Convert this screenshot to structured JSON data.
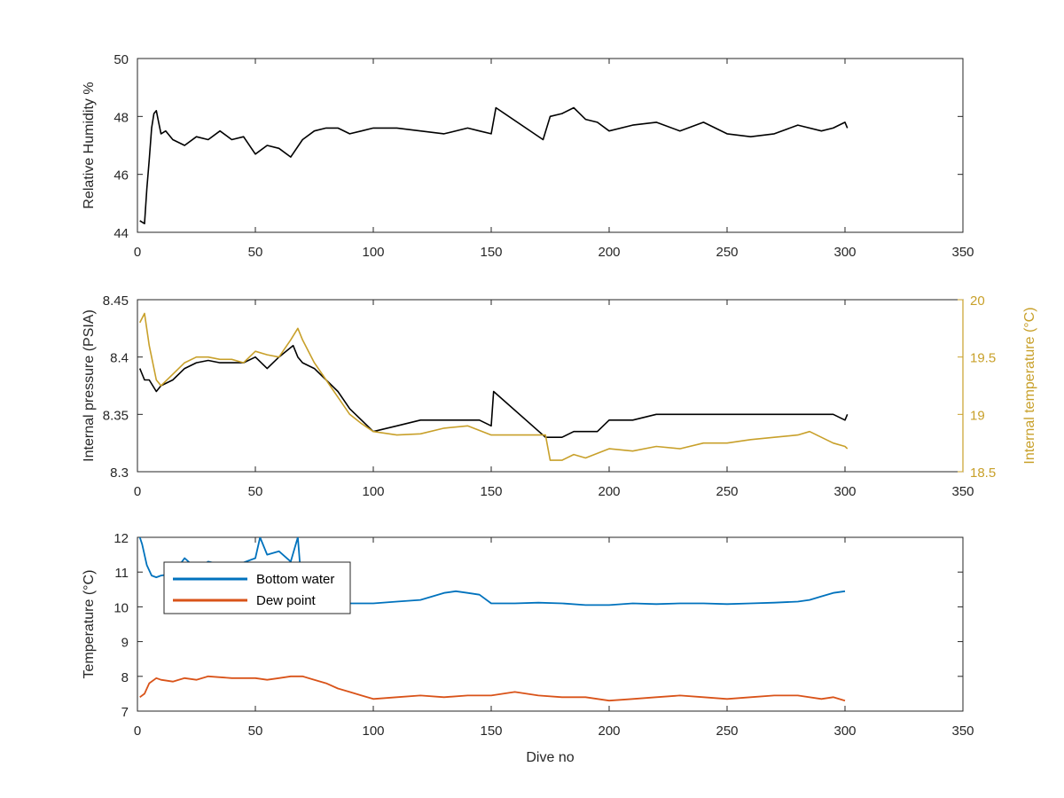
{
  "colors": {
    "black": "#000000",
    "axis": "#262626",
    "bottom_water": "#0072BD",
    "dew_point": "#D95319",
    "internal_temperature": "#C8A02A"
  },
  "chart_data": [
    {
      "id": "humidity",
      "type": "line",
      "xlabel": "",
      "ylabel": "Relative Humidity %",
      "xlim": [
        0,
        350
      ],
      "ylim": [
        44,
        50
      ],
      "xticks": [
        0,
        50,
        100,
        150,
        200,
        250,
        300,
        350
      ],
      "yticks": [
        44,
        46,
        48,
        50
      ],
      "series": [
        {
          "color": "black",
          "x": [
            1,
            3,
            4,
            5,
            6,
            7,
            8,
            9,
            10,
            12,
            15,
            20,
            25,
            30,
            35,
            40,
            45,
            50,
            55,
            60,
            65,
            70,
            75,
            80,
            85,
            90,
            95,
            100,
            110,
            120,
            130,
            140,
            145,
            150,
            152,
            172,
            175,
            180,
            185,
            190,
            195,
            200,
            210,
            220,
            230,
            240,
            250,
            260,
            270,
            280,
            290,
            295,
            300,
            301
          ],
          "y": [
            44.4,
            44.3,
            45.5,
            46.5,
            47.6,
            48.1,
            48.2,
            47.8,
            47.4,
            47.5,
            47.2,
            47.0,
            47.3,
            47.2,
            47.5,
            47.2,
            47.3,
            46.7,
            47.0,
            46.9,
            46.6,
            47.2,
            47.5,
            47.6,
            47.6,
            47.4,
            47.5,
            47.6,
            47.6,
            47.5,
            47.4,
            47.6,
            47.5,
            47.4,
            48.3,
            47.2,
            48.0,
            48.1,
            48.3,
            47.9,
            47.8,
            47.5,
            47.7,
            47.8,
            47.5,
            47.8,
            47.4,
            47.3,
            47.4,
            47.7,
            47.5,
            47.6,
            47.8,
            47.6
          ]
        }
      ]
    },
    {
      "id": "pressure",
      "type": "line",
      "xlabel": "",
      "ylabel": "Internal pressure (PSIA)",
      "ylabel_right": "Internal temperature (°C)",
      "xlim": [
        0,
        350
      ],
      "ylim": [
        8.3,
        8.45
      ],
      "ylim_right": [
        18.5,
        20
      ],
      "xticks": [
        0,
        50,
        100,
        150,
        200,
        250,
        300,
        350
      ],
      "yticks": [
        8.3,
        8.35,
        8.4,
        8.45
      ],
      "yticks_right": [
        18.5,
        19,
        19.5,
        20
      ],
      "series": [
        {
          "name": "",
          "axis": "left",
          "color": "black",
          "x": [
            1,
            3,
            5,
            8,
            10,
            15,
            20,
            25,
            30,
            35,
            40,
            45,
            50,
            55,
            60,
            63,
            66,
            68,
            70,
            75,
            80,
            85,
            90,
            95,
            100,
            110,
            120,
            130,
            140,
            145,
            150,
            151,
            173,
            175,
            180,
            185,
            190,
            195,
            200,
            210,
            220,
            230,
            240,
            250,
            260,
            270,
            280,
            290,
            295,
            300,
            301
          ],
          "y": [
            8.39,
            8.38,
            8.38,
            8.37,
            8.375,
            8.38,
            8.39,
            8.395,
            8.397,
            8.395,
            8.395,
            8.395,
            8.4,
            8.39,
            8.4,
            8.405,
            8.41,
            8.4,
            8.395,
            8.39,
            8.38,
            8.37,
            8.355,
            8.345,
            8.335,
            8.34,
            8.345,
            8.345,
            8.345,
            8.345,
            8.34,
            8.37,
            8.33,
            8.33,
            8.33,
            8.335,
            8.335,
            8.335,
            8.345,
            8.345,
            8.35,
            8.35,
            8.35,
            8.35,
            8.35,
            8.35,
            8.35,
            8.35,
            8.35,
            8.345,
            8.35
          ]
        },
        {
          "name": "",
          "axis": "right",
          "color": "internal_temperature",
          "x": [
            1,
            3,
            5,
            8,
            10,
            15,
            20,
            25,
            30,
            35,
            40,
            45,
            50,
            55,
            60,
            65,
            68,
            70,
            75,
            80,
            85,
            90,
            95,
            100,
            110,
            120,
            130,
            140,
            150,
            173,
            175,
            180,
            185,
            190,
            200,
            210,
            220,
            230,
            240,
            250,
            260,
            270,
            280,
            285,
            290,
            295,
            300,
            301
          ],
          "y": [
            19.8,
            19.88,
            19.6,
            19.3,
            19.25,
            19.35,
            19.45,
            19.5,
            19.5,
            19.48,
            19.48,
            19.45,
            19.55,
            19.52,
            19.5,
            19.65,
            19.75,
            19.65,
            19.45,
            19.3,
            19.15,
            19.0,
            18.92,
            18.85,
            18.82,
            18.83,
            18.88,
            18.9,
            18.82,
            18.82,
            18.6,
            18.6,
            18.65,
            18.62,
            18.7,
            18.68,
            18.72,
            18.7,
            18.75,
            18.75,
            18.78,
            18.8,
            18.82,
            18.85,
            18.8,
            18.75,
            18.72,
            18.7
          ]
        }
      ]
    },
    {
      "id": "temperature",
      "type": "line",
      "xlabel": "Dive no",
      "ylabel": "Temperature (°C)",
      "xlim": [
        0,
        350
      ],
      "ylim": [
        7,
        12
      ],
      "xticks": [
        0,
        50,
        100,
        150,
        200,
        250,
        300,
        350
      ],
      "yticks": [
        7,
        8,
        9,
        10,
        11,
        12
      ],
      "legend": {
        "position": "top-left"
      },
      "series": [
        {
          "name": "Bottom water",
          "color": "bottom_water",
          "x": [
            1,
            2,
            4,
            6,
            8,
            10,
            15,
            20,
            25,
            30,
            40,
            50,
            52,
            55,
            60,
            65,
            68,
            70,
            75,
            80,
            90,
            100,
            110,
            120,
            130,
            135,
            140,
            145,
            150,
            160,
            170,
            180,
            190,
            200,
            210,
            220,
            230,
            240,
            250,
            260,
            270,
            280,
            285,
            290,
            295,
            300
          ],
          "y": [
            12.0,
            11.8,
            11.2,
            10.9,
            10.85,
            10.9,
            10.95,
            11.4,
            11.1,
            11.3,
            11.15,
            11.4,
            12.0,
            11.5,
            11.6,
            11.3,
            12.0,
            10.3,
            10.2,
            10.2,
            10.1,
            10.1,
            10.15,
            10.2,
            10.4,
            10.45,
            10.4,
            10.35,
            10.1,
            10.1,
            10.12,
            10.1,
            10.05,
            10.05,
            10.1,
            10.08,
            10.1,
            10.1,
            10.08,
            10.1,
            10.12,
            10.15,
            10.2,
            10.3,
            10.4,
            10.45
          ]
        },
        {
          "name": "Dew point",
          "color": "dew_point",
          "x": [
            1,
            3,
            5,
            8,
            10,
            15,
            20,
            25,
            30,
            40,
            50,
            55,
            60,
            65,
            70,
            75,
            80,
            85,
            90,
            95,
            100,
            110,
            120,
            130,
            140,
            150,
            160,
            170,
            180,
            190,
            200,
            210,
            220,
            230,
            240,
            250,
            260,
            270,
            280,
            290,
            295,
            300
          ],
          "y": [
            7.4,
            7.5,
            7.8,
            7.95,
            7.9,
            7.85,
            7.95,
            7.9,
            8.0,
            7.95,
            7.95,
            7.9,
            7.95,
            8.0,
            8.0,
            7.9,
            7.8,
            7.65,
            7.55,
            7.45,
            7.35,
            7.4,
            7.45,
            7.4,
            7.45,
            7.45,
            7.55,
            7.45,
            7.4,
            7.4,
            7.3,
            7.35,
            7.4,
            7.45,
            7.4,
            7.35,
            7.4,
            7.45,
            7.45,
            7.35,
            7.4,
            7.3
          ]
        }
      ]
    }
  ]
}
